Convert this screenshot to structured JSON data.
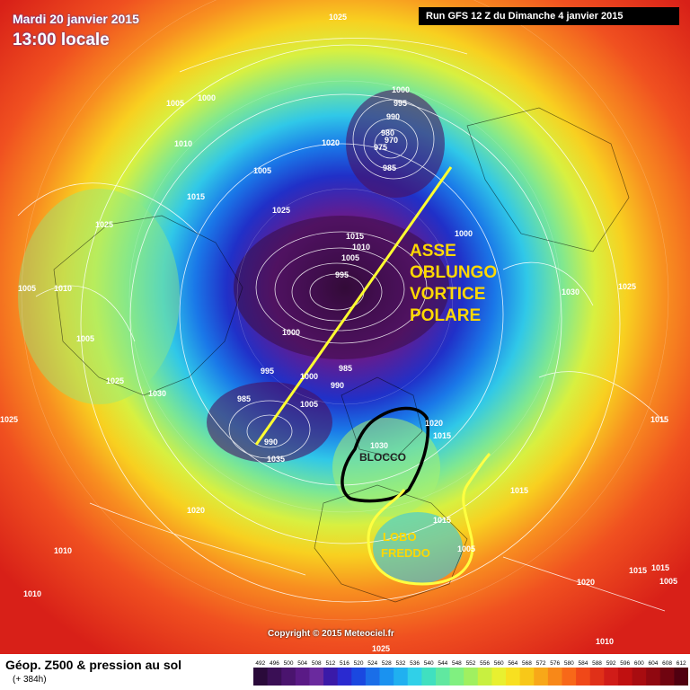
{
  "header": {
    "date": "Mardi 20 janvier 2015",
    "time": "13:00 locale",
    "run": "Run GFS 12 Z du Dimanche 4 janvier 2015"
  },
  "footer": {
    "title": "Géop. Z500 & pression au sol",
    "subtitle": "(+ 384h)",
    "copyright": "Copyright © 2015 Meteociel.fr"
  },
  "scale": {
    "labels": [
      "492",
      "496",
      "500",
      "504",
      "508",
      "512",
      "516",
      "520",
      "524",
      "528",
      "532",
      "536",
      "540",
      "544",
      "548",
      "552",
      "556",
      "560",
      "564",
      "568",
      "572",
      "576",
      "580",
      "584",
      "588",
      "592",
      "596",
      "600",
      "604",
      "608",
      "612"
    ],
    "colors": [
      "#2a0a3a",
      "#3a0f55",
      "#4a146e",
      "#5a1a86",
      "#6a2a9e",
      "#3a1aa8",
      "#2a2ad0",
      "#1a48e0",
      "#1a6ee8",
      "#1a92f0",
      "#20b0f0",
      "#30d0e8",
      "#40e0c0",
      "#60e8a0",
      "#80f080",
      "#a0f060",
      "#c8f040",
      "#e8f030",
      "#f8e020",
      "#f8c818",
      "#f8a818",
      "#f88818",
      "#f86818",
      "#f04818",
      "#e03018",
      "#d01c18",
      "#c01010",
      "#a80c10",
      "#900810",
      "#700410",
      "#500010"
    ]
  },
  "annotations": {
    "axis": [
      "ASSE",
      "OBLUNGO",
      "VORTICE",
      "POLARE"
    ],
    "block": "BLOCCO",
    "cold_lobe": [
      "LOBO",
      "FREDDO"
    ]
  },
  "isobars": [
    "1025",
    "1000",
    "1005",
    "1010",
    "1005",
    "1015",
    "1025",
    "1005",
    "1010",
    "1020",
    "1000",
    "995",
    "990",
    "980",
    "975",
    "970",
    "985",
    "1025",
    "1015",
    "1010",
    "1005",
    "995",
    "1000",
    "1005",
    "1025",
    "1030",
    "1000",
    "985",
    "990",
    "1000",
    "995",
    "1005",
    "985",
    "990",
    "1035",
    "1030",
    "1025",
    "1020",
    "1030",
    "1015",
    "1025",
    "1015",
    "1020",
    "1015",
    "1010",
    "1015",
    "1005",
    "1020",
    "1010",
    "1015",
    "1015",
    "1010",
    "1005",
    "1025",
    "1020",
    "1015"
  ]
}
